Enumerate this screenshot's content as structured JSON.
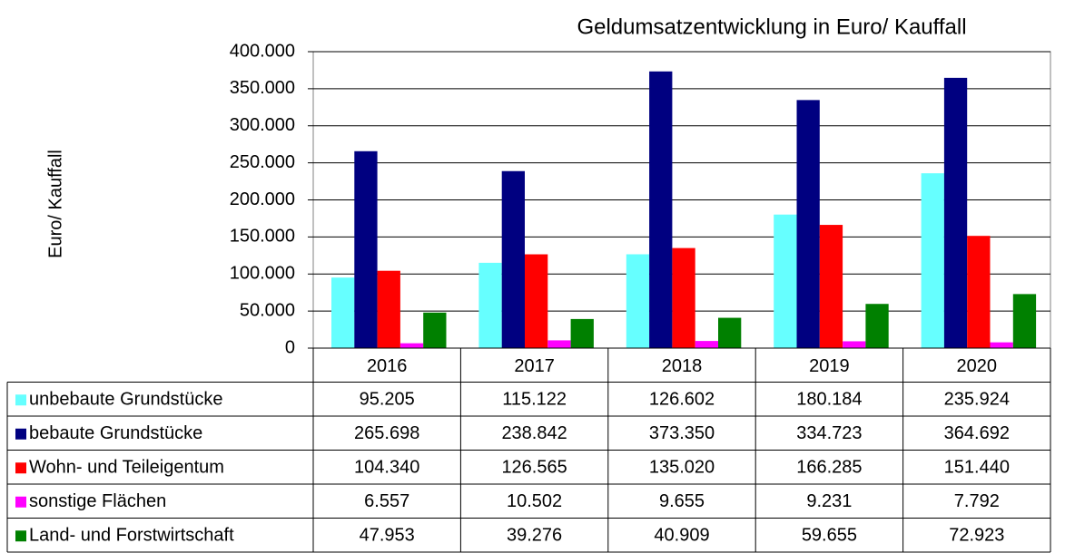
{
  "chart_data": {
    "type": "bar",
    "title": "Geldumsatzentwicklung  in Euro/ Kauffall",
    "y_label": "Euro/ Kauffall",
    "categories": [
      "2016",
      "2017",
      "2018",
      "2019",
      "2020"
    ],
    "series": [
      {
        "name": "unbebaute Grundstücke",
        "color": "#66ffff",
        "values": [
          95205,
          115122,
          126602,
          180184,
          235924
        ],
        "value_labels": [
          "95.205",
          "115.122",
          "126.602",
          "180.184",
          "235.924"
        ]
      },
      {
        "name": "bebaute Grundstücke",
        "color": "#000080",
        "values": [
          265698,
          238842,
          373350,
          334723,
          364692
        ],
        "value_labels": [
          "265.698",
          "238.842",
          "373.350",
          "334.723",
          "364.692"
        ]
      },
      {
        "name": "Wohn- und Teileigentum",
        "color": "#ff0000",
        "values": [
          104340,
          126565,
          135020,
          166285,
          151440
        ],
        "value_labels": [
          "104.340",
          "126.565",
          "135.020",
          "166.285",
          "151.440"
        ]
      },
      {
        "name": "sonstige Flächen",
        "color": "#ff00ff",
        "values": [
          6557,
          10502,
          9655,
          9231,
          7792
        ],
        "value_labels": [
          "6.557",
          "10.502",
          "9.655",
          "9.231",
          "7.792"
        ]
      },
      {
        "name": "Land- und Forstwirtschaft",
        "color": "#008000",
        "values": [
          47953,
          39276,
          40909,
          59655,
          72923
        ],
        "value_labels": [
          "47.953",
          "39.276",
          "40.909",
          "59.655",
          "72.923"
        ]
      }
    ],
    "ylim": [
      0,
      400000
    ],
    "yticks": [
      0,
      {
        "value": 50000,
        "label": "50.000"
      },
      {
        "value": 100000,
        "label": "100.000"
      },
      {
        "value": 150000,
        "label": "150.000"
      },
      {
        "value": 200000,
        "label": "200.000"
      },
      {
        "value": 250000,
        "label": "250.000"
      },
      {
        "value": 300000,
        "label": "300.000"
      },
      {
        "value": 350000,
        "label": "350.000"
      },
      {
        "value": 400000,
        "label": "400.000"
      }
    ],
    "grid": true
  }
}
